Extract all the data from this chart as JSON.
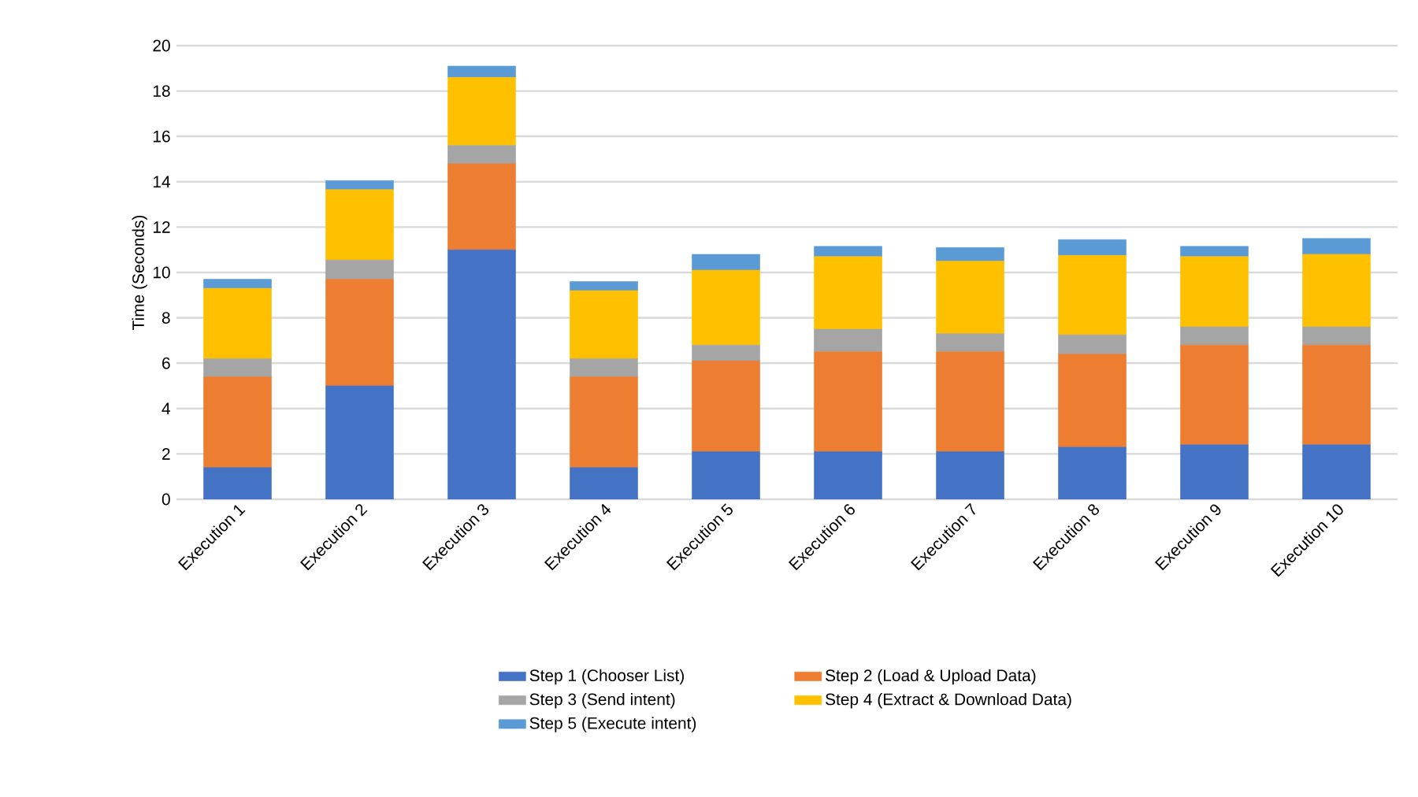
{
  "chart_data": {
    "type": "bar",
    "stacked": true,
    "ylabel": "Time (Seconds)",
    "categories": [
      "Execution 1",
      "Execution 2",
      "Execution 3",
      "Execution 4",
      "Execution 5",
      "Execution 6",
      "Execution 7",
      "Execution 8",
      "Execution 9",
      "Execution 10"
    ],
    "series": [
      {
        "name": "Step 1 (Chooser List)",
        "color": "#4472c4",
        "values": [
          1.4,
          5.0,
          11.0,
          1.4,
          2.1,
          2.1,
          2.1,
          2.3,
          2.4,
          2.4
        ]
      },
      {
        "name": "Step 2 (Load & Upload Data)",
        "color": "#ed7d31",
        "values": [
          4.0,
          4.7,
          3.8,
          4.0,
          4.0,
          4.4,
          4.4,
          4.1,
          4.4,
          4.4
        ]
      },
      {
        "name": "Step 3 (Send intent)",
        "color": "#a5a5a5",
        "values": [
          0.8,
          0.85,
          0.8,
          0.8,
          0.7,
          1.0,
          0.8,
          0.85,
          0.8,
          0.8
        ]
      },
      {
        "name": "Step 4 (Extract & Download Data)",
        "color": "#ffc000",
        "values": [
          3.1,
          3.1,
          3.0,
          3.0,
          3.3,
          3.2,
          3.2,
          3.5,
          3.1,
          3.2
        ]
      },
      {
        "name": "Step 5 (Execute intent)",
        "color": "#5b9bd5",
        "values": [
          0.4,
          0.4,
          0.5,
          0.4,
          0.7,
          0.45,
          0.6,
          0.7,
          0.45,
          0.7
        ]
      }
    ],
    "ylim": [
      0,
      20
    ],
    "yticks": [
      0,
      2,
      4,
      6,
      8,
      10,
      12,
      14,
      16,
      18,
      20
    ],
    "grid": "y",
    "legend": "bottom"
  }
}
